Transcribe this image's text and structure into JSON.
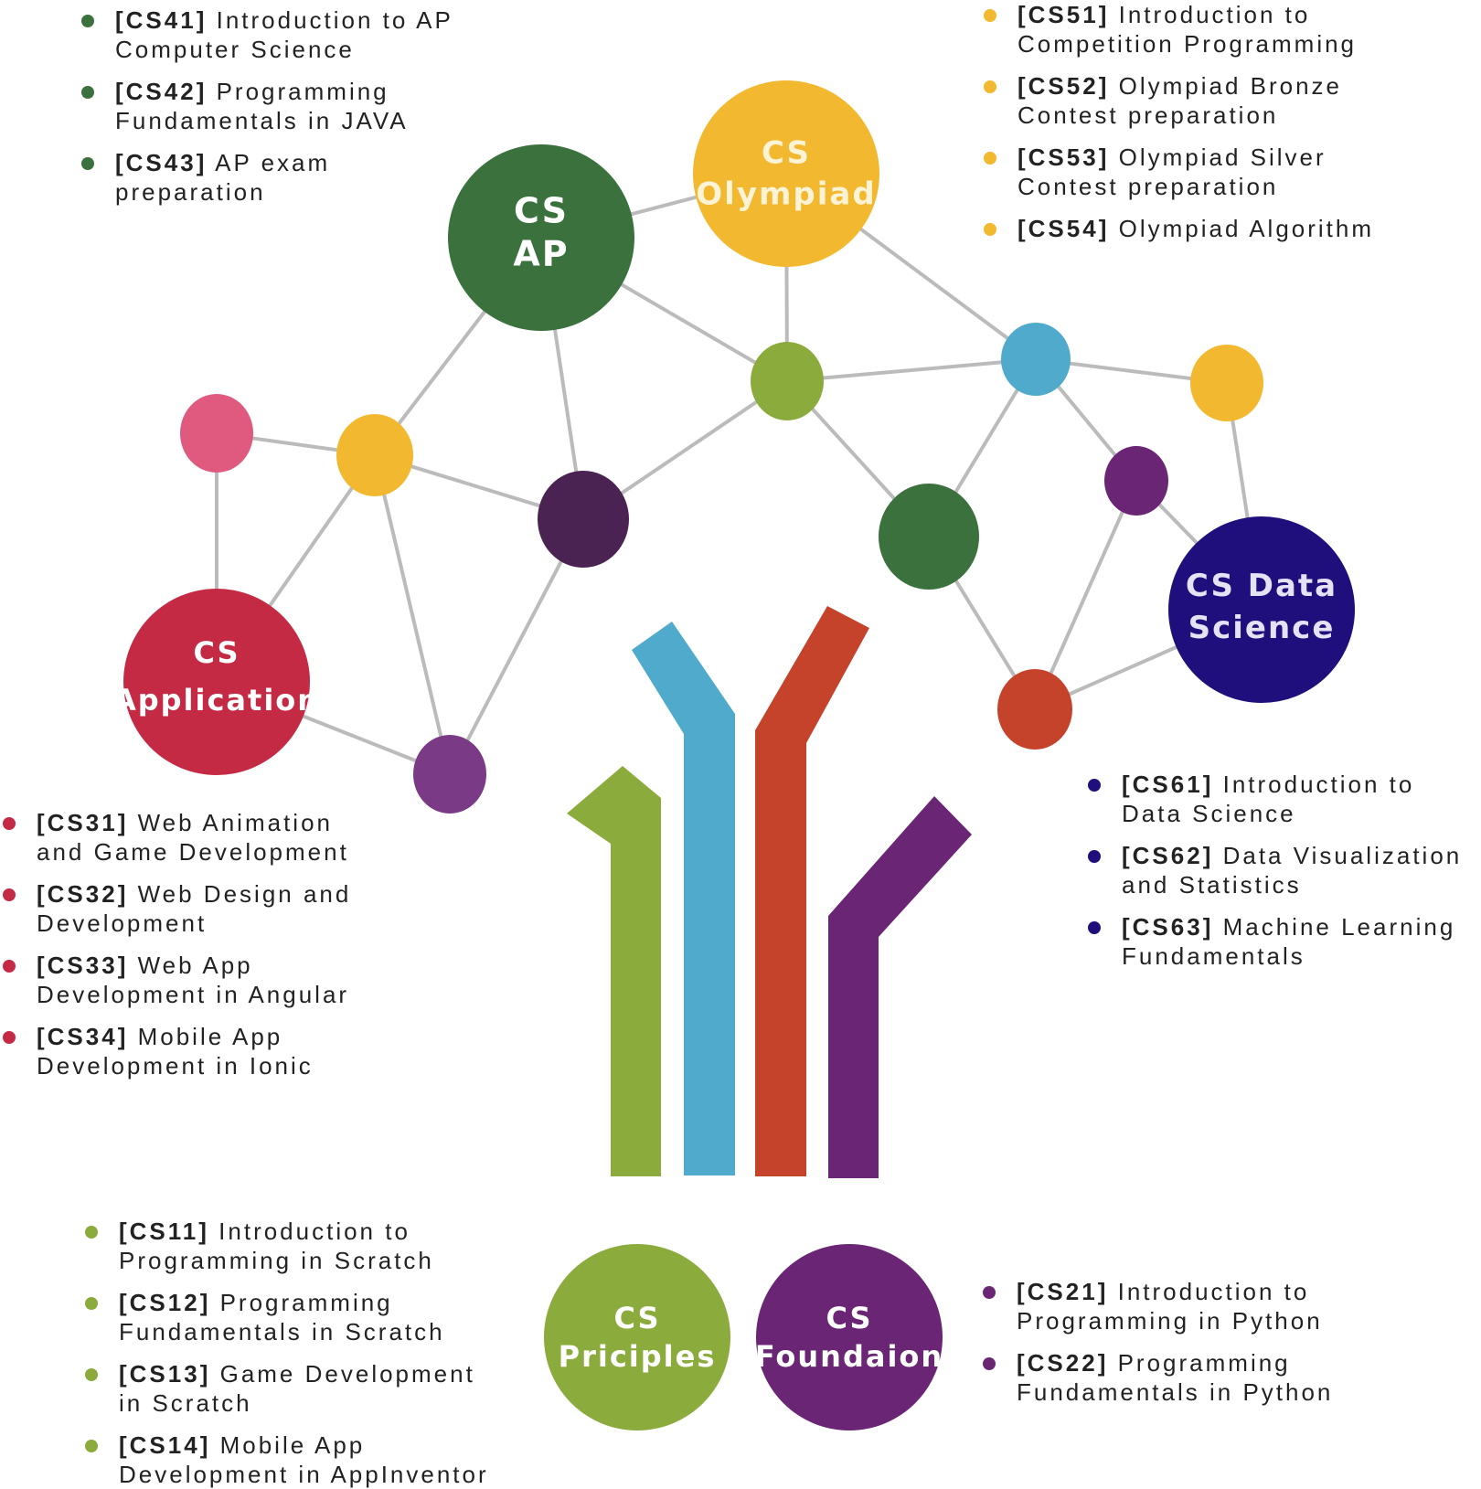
{
  "colors": {
    "ap": "#3b713c",
    "olympiad": "#f2b82f",
    "application": "#c52a45",
    "data_science": "#1e0f7c",
    "principles": "#8cab3d",
    "foundation": "#6a2674",
    "stem_blue": "#4faacb",
    "stem_red": "#c6432b",
    "edge": "#bbbbbb",
    "pink": "#e05a80",
    "plum": "#4a2352",
    "violet": "#7a3a86"
  },
  "hubs": {
    "ap": [
      "CS",
      "AP"
    ],
    "olympiad": [
      "CS",
      "Olympiad"
    ],
    "application": [
      "CS",
      "Application"
    ],
    "data_science": [
      "CS Data",
      "Science"
    ],
    "principles": [
      "CS",
      "Priciples"
    ],
    "foundation": [
      "CS",
      "Foundaion"
    ]
  },
  "courses": {
    "ap": [
      {
        "code": "[CS41]",
        "title": "Introduction to AP",
        "cont": "Computer Science"
      },
      {
        "code": "[CS42]",
        "title": "Programming",
        "cont": "Fundamentals in JAVA"
      },
      {
        "code": "[CS43]",
        "title": "AP exam",
        "cont": "preparation"
      }
    ],
    "olympiad": [
      {
        "code": "[CS51]",
        "title": "Introduction to",
        "cont": "Competition Programming"
      },
      {
        "code": "[CS52]",
        "title": "Olympiad Bronze",
        "cont": "Contest preparation"
      },
      {
        "code": "[CS53]",
        "title": "Olympiad Silver",
        "cont": "Contest preparation"
      },
      {
        "code": "[CS54]",
        "title": "Olympiad Algorithm",
        "cont": ""
      }
    ],
    "application": [
      {
        "code": "[CS31]",
        "title": "Web Animation",
        "cont": "and Game Development"
      },
      {
        "code": "[CS32]",
        "title": "Web Design and",
        "cont": "Development"
      },
      {
        "code": "[CS33]",
        "title": "Web App",
        "cont": "Development in Angular"
      },
      {
        "code": "[CS34]",
        "title": "Mobile App",
        "cont": "Development in Ionic"
      }
    ],
    "data_science": [
      {
        "code": "[CS61]",
        "title": "Introduction to",
        "cont": "Data Science"
      },
      {
        "code": "[CS62]",
        "title": "Data Visualization",
        "cont": "and Statistics"
      },
      {
        "code": "[CS63]",
        "title": "Machine Learning",
        "cont": "Fundamentals"
      }
    ],
    "principles": [
      {
        "code": "[CS11]",
        "title": "Introduction to",
        "cont": "Programming in Scratch"
      },
      {
        "code": "[CS12]",
        "title": "Programming",
        "cont": "Fundamentals in Scratch"
      },
      {
        "code": "[CS13]",
        "title": "Game Development",
        "cont": "in Scratch"
      },
      {
        "code": "[CS14]",
        "title": "Mobile App",
        "cont": "Development in AppInventor"
      }
    ],
    "foundation": [
      {
        "code": "[CS21]",
        "title": "Introduction to",
        "cont": "Programming in Python"
      },
      {
        "code": "[CS22]",
        "title": "Programming",
        "cont": "Fundamentals in Python"
      }
    ]
  }
}
